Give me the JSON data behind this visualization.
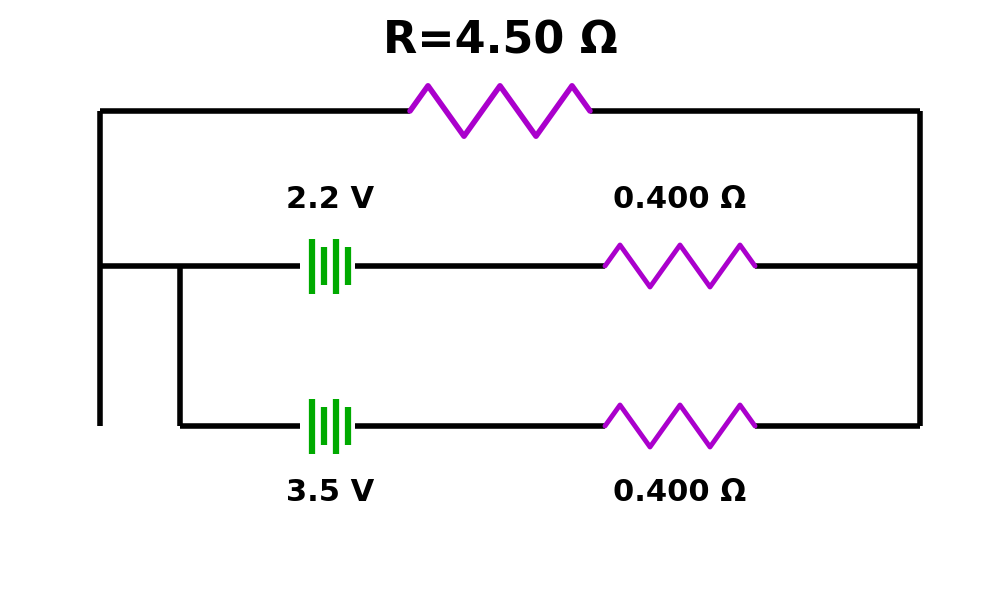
{
  "title": "R=4.50 Ω",
  "title_fontsize": 32,
  "battery1_label": "2.2 V",
  "battery2_label": "3.5 V",
  "r1_label": "0.400 Ω",
  "r2_label": "0.400 Ω",
  "r_top_label": "R=4.50 Ω",
  "battery_color": "#00aa00",
  "resistor_color": "#aa00cc",
  "wire_color": "#000000",
  "label_color": "#000000",
  "wire_linewidth": 4,
  "resistor_linewidth": 3.5,
  "battery_linewidth": 3.5,
  "background_color": "#ffffff"
}
